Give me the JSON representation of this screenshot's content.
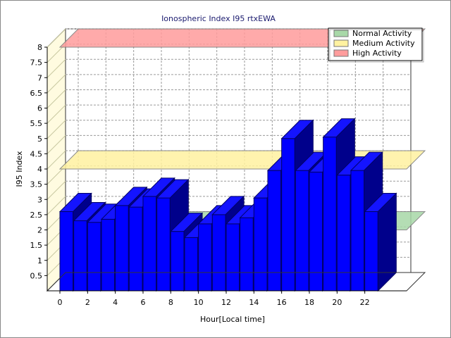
{
  "chart_data": {
    "type": "bar",
    "title": "Ionospheric Index I95 rtxEWA",
    "xlabel": "Hour[Local time]",
    "ylabel": "I95 Index",
    "x_ticks": [
      "0",
      "2",
      "4",
      "6",
      "8",
      "10",
      "12",
      "14",
      "16",
      "18",
      "20",
      "22"
    ],
    "y_ticks": [
      "0.5",
      "1",
      "1.5",
      "2",
      "2.5",
      "3",
      "3.5",
      "4",
      "4.5",
      "5",
      "5.5",
      "6",
      "6.5",
      "7",
      "7.5",
      "8"
    ],
    "ylim": [
      0,
      8
    ],
    "xlim": [
      0,
      24
    ],
    "grid": true,
    "three_d": true,
    "legend_position": "top-right",
    "categories": [
      0,
      1,
      2,
      3,
      4,
      5,
      6,
      7,
      8,
      9,
      10,
      11,
      12,
      13,
      14,
      15,
      16,
      17,
      18,
      19,
      20,
      21,
      22,
      23
    ],
    "values": [
      2.6,
      2.3,
      2.25,
      2.35,
      2.8,
      2.75,
      3.1,
      3.05,
      1.95,
      1.75,
      2.2,
      2.5,
      2.2,
      2.4,
      3.05,
      3.95,
      5.0,
      3.95,
      3.9,
      5.05,
      3.8,
      3.95,
      2.6,
      0
    ],
    "bar_color": "#0000ff",
    "threshold_bands": [
      {
        "name": "Normal Activity",
        "value": 2.0,
        "color": "#a8d8a8"
      },
      {
        "name": "Medium Activity",
        "value": 4.0,
        "color": "#fff2a0"
      },
      {
        "name": "High Activity",
        "value": 8.0,
        "color": "#ff9c9c"
      }
    ]
  }
}
